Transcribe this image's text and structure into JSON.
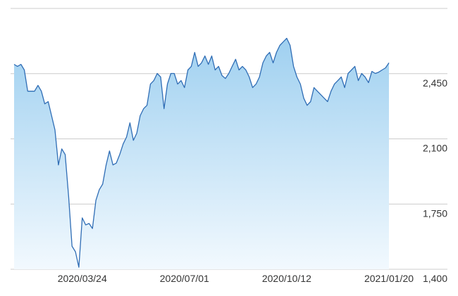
{
  "chart_data": {
    "type": "area",
    "color": "#2f6db5",
    "categories": [
      null,
      null,
      null,
      null,
      null,
      null,
      null,
      null,
      null,
      null,
      null,
      null,
      null,
      null,
      null,
      null,
      null,
      null,
      null,
      null,
      "2020/03/24",
      null,
      null,
      null,
      null,
      null,
      null,
      null,
      null,
      null,
      null,
      null,
      null,
      null,
      null,
      null,
      null,
      null,
      null,
      null,
      null,
      null,
      null,
      null,
      null,
      null,
      null,
      null,
      null,
      null,
      "2020/07/01",
      null,
      null,
      null,
      null,
      null,
      null,
      null,
      null,
      null,
      null,
      null,
      null,
      null,
      null,
      null,
      null,
      null,
      null,
      null,
      null,
      null,
      null,
      null,
      null,
      null,
      null,
      null,
      null,
      null,
      "2020/10/12",
      null,
      null,
      null,
      null,
      null,
      null,
      null,
      null,
      null,
      null,
      null,
      null,
      null,
      null,
      null,
      null,
      null,
      null,
      null,
      null,
      null,
      null,
      null,
      null,
      null,
      null,
      null,
      null,
      null,
      "2021/01/20"
    ],
    "values": [
      2500,
      2489,
      2500,
      2470,
      2356,
      2356,
      2356,
      2387,
      2356,
      2288,
      2300,
      2224,
      2148,
      1960,
      2046,
      2016,
      1790,
      1524,
      1494,
      1411,
      1676,
      1638,
      1646,
      1619,
      1770,
      1827,
      1857,
      1960,
      2035,
      1960,
      1970,
      2016,
      2073,
      2110,
      2186,
      2092,
      2130,
      2224,
      2262,
      2280,
      2394,
      2413,
      2451,
      2432,
      2262,
      2394,
      2451,
      2451,
      2394,
      2413,
      2375,
      2470,
      2489,
      2564,
      2489,
      2508,
      2545,
      2500,
      2545,
      2470,
      2489,
      2440,
      2424,
      2451,
      2489,
      2527,
      2470,
      2489,
      2470,
      2432,
      2375,
      2394,
      2432,
      2508,
      2545,
      2564,
      2508,
      2564,
      2602,
      2621,
      2640,
      2602,
      2489,
      2432,
      2394,
      2318,
      2280,
      2300,
      2375,
      2356,
      2337,
      2318,
      2300,
      2356,
      2394,
      2413,
      2432,
      2375,
      2451,
      2470,
      2489,
      2413,
      2451,
      2432,
      2402,
      2462,
      2451,
      2458,
      2470,
      2481,
      2508
    ],
    "ylim": [
      1400,
      2800
    ],
    "yticks": [
      {
        "value": 1400,
        "label": "1,400"
      },
      {
        "value": 1750,
        "label": "1,750"
      },
      {
        "value": 2100,
        "label": "2,100"
      },
      {
        "value": 2450,
        "label": "2,450"
      }
    ],
    "grid": true
  }
}
